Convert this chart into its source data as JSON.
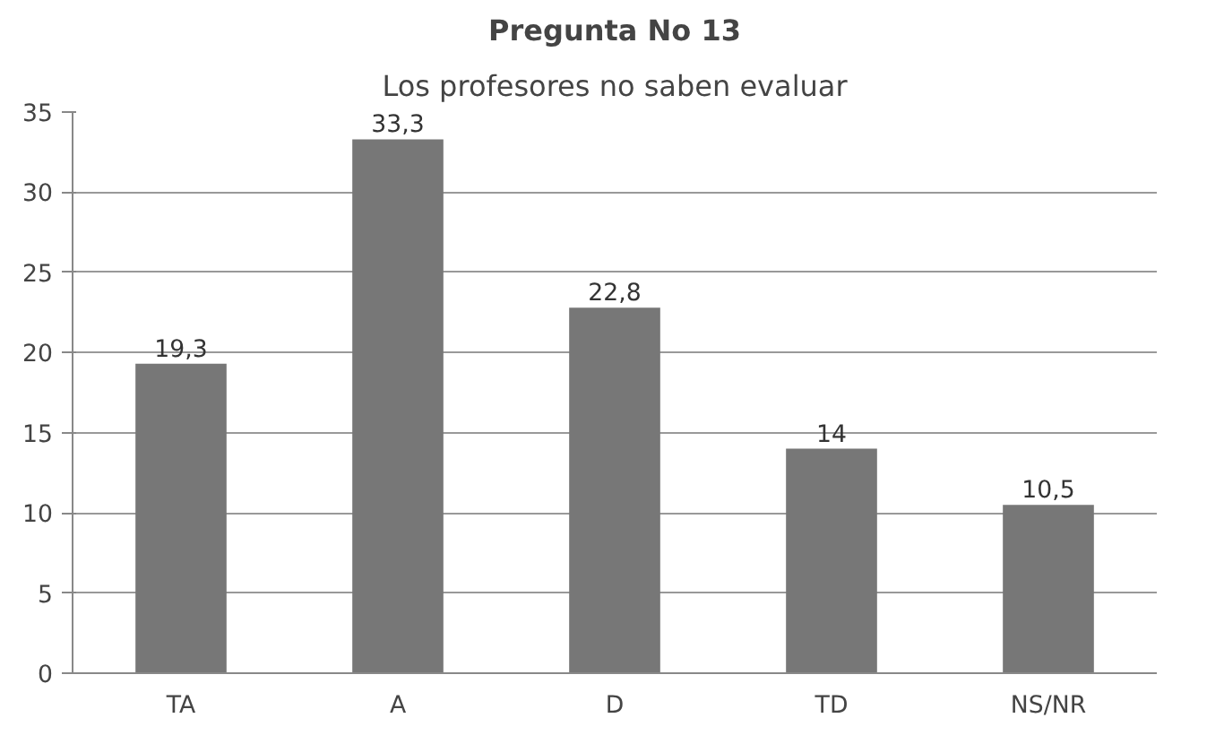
{
  "chart_data": {
    "type": "bar",
    "title": "Pregunta No 13",
    "subtitle": "Los profesores no saben evaluar",
    "categories": [
      "TA",
      "A",
      "D",
      "TD",
      "NS/NR"
    ],
    "values": [
      19.3,
      33.3,
      22.8,
      14,
      10.5
    ],
    "value_labels": [
      "19,3",
      "33,3",
      "22,8",
      "14",
      "10,5"
    ],
    "color": "#777777",
    "ylim": [
      0,
      35
    ],
    "yticks": [
      0,
      5,
      10,
      15,
      20,
      25,
      30,
      35
    ],
    "grid": "y"
  }
}
